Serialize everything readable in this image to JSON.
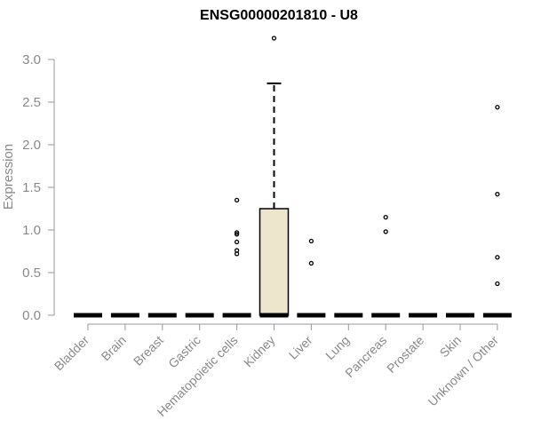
{
  "chart_data": {
    "type": "boxplot",
    "title": "ENSG00000201810 - U8",
    "xlabel": "",
    "ylabel": "Expression",
    "ylim": [
      0,
      3.0
    ],
    "yticks": [
      "0.0",
      "0.5",
      "1.0",
      "1.5",
      "2.0",
      "2.5",
      "3.0"
    ],
    "grid": false,
    "box_color": "#ede6cc",
    "categories": [
      "Bladder",
      "Brain",
      "Breast",
      "Gastric",
      "Hematopoietic cells",
      "Kidney",
      "Liver",
      "Lung",
      "Pancreas",
      "Prostate",
      "Skin",
      "Unknown / Other"
    ],
    "boxes": [
      {
        "q1": 0,
        "median": 0,
        "q3": 0,
        "whisker_low": 0,
        "whisker_high": 0,
        "outliers": []
      },
      {
        "q1": 0,
        "median": 0,
        "q3": 0,
        "whisker_low": 0,
        "whisker_high": 0,
        "outliers": []
      },
      {
        "q1": 0,
        "median": 0,
        "q3": 0,
        "whisker_low": 0,
        "whisker_high": 0,
        "outliers": []
      },
      {
        "q1": 0,
        "median": 0,
        "q3": 0,
        "whisker_low": 0,
        "whisker_high": 0,
        "outliers": []
      },
      {
        "q1": 0,
        "median": 0,
        "q3": 0,
        "whisker_low": 0,
        "whisker_high": 0,
        "outliers": [
          1.35,
          0.97,
          0.95,
          0.86,
          0.76,
          0.72
        ]
      },
      {
        "q1": 0,
        "median": 0,
        "q3": 1.25,
        "whisker_low": 0,
        "whisker_high": 2.72,
        "outliers": [
          3.25
        ]
      },
      {
        "q1": 0,
        "median": 0,
        "q3": 0,
        "whisker_low": 0,
        "whisker_high": 0,
        "outliers": [
          0.87,
          0.61
        ]
      },
      {
        "q1": 0,
        "median": 0,
        "q3": 0,
        "whisker_low": 0,
        "whisker_high": 0,
        "outliers": []
      },
      {
        "q1": 0,
        "median": 0,
        "q3": 0,
        "whisker_low": 0,
        "whisker_high": 0,
        "outliers": [
          1.15,
          0.98
        ]
      },
      {
        "q1": 0,
        "median": 0,
        "q3": 0,
        "whisker_low": 0,
        "whisker_high": 0,
        "outliers": []
      },
      {
        "q1": 0,
        "median": 0,
        "q3": 0,
        "whisker_low": 0,
        "whisker_high": 0,
        "outliers": []
      },
      {
        "q1": 0,
        "median": 0,
        "q3": 0,
        "whisker_low": 0,
        "whisker_high": 0,
        "outliers": [
          2.44,
          1.42,
          0.68,
          0.37
        ]
      }
    ]
  }
}
